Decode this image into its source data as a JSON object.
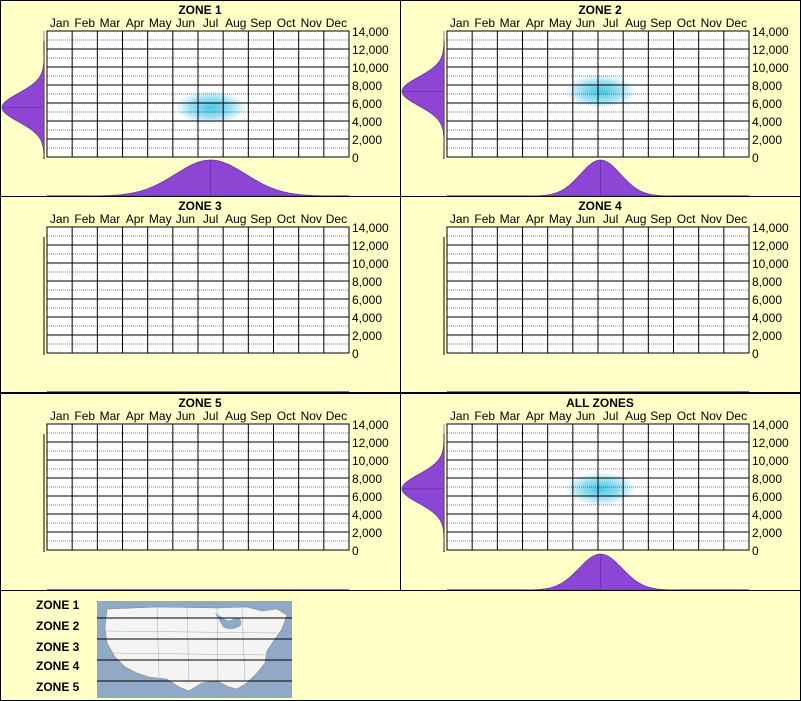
{
  "chart_data": [
    {
      "type": "heatmap",
      "title": "ZONE 1",
      "months": [
        "Jan",
        "Feb",
        "Mar",
        "Apr",
        "May",
        "Jun",
        "Jul",
        "Aug",
        "Sep",
        "Oct",
        "Nov",
        "Dec"
      ],
      "y_ticks": [
        "14,000",
        "12,000",
        "10,000",
        "8,000",
        "6,000",
        "4,000",
        "2,000",
        "0"
      ],
      "ylim": [
        0,
        14000
      ],
      "hotspot": {
        "month": 7.0,
        "elevation": 5500
      },
      "month_distribution": {
        "peak_month": 7.0,
        "spread": 1.4
      },
      "elevation_distribution": {
        "peak": 5500,
        "spread": 1600
      }
    },
    {
      "type": "heatmap",
      "title": "ZONE 2",
      "months": [
        "Jan",
        "Feb",
        "Mar",
        "Apr",
        "May",
        "Jun",
        "Jul",
        "Aug",
        "Sep",
        "Oct",
        "Nov",
        "Dec"
      ],
      "y_ticks": [
        "14,000",
        "12,000",
        "10,000",
        "8,000",
        "6,000",
        "4,000",
        "2,000",
        "0"
      ],
      "ylim": [
        0,
        14000
      ],
      "hotspot": {
        "month": 6.6,
        "elevation": 7300
      },
      "month_distribution": {
        "peak_month": 6.6,
        "spread": 0.8
      },
      "elevation_distribution": {
        "peak": 7300,
        "spread": 1600
      }
    },
    {
      "type": "heatmap",
      "title": "ZONE 3",
      "months": [
        "Jan",
        "Feb",
        "Mar",
        "Apr",
        "May",
        "Jun",
        "Jul",
        "Aug",
        "Sep",
        "Oct",
        "Nov",
        "Dec"
      ],
      "y_ticks": [
        "14,000",
        "12,000",
        "10,000",
        "8,000",
        "6,000",
        "4,000",
        "2,000",
        "0"
      ],
      "ylim": [
        0,
        14000
      ]
    },
    {
      "type": "heatmap",
      "title": "ZONE 4",
      "months": [
        "Jan",
        "Feb",
        "Mar",
        "Apr",
        "May",
        "Jun",
        "Jul",
        "Aug",
        "Sep",
        "Oct",
        "Nov",
        "Dec"
      ],
      "y_ticks": [
        "14,000",
        "12,000",
        "10,000",
        "8,000",
        "6,000",
        "4,000",
        "2,000",
        "0"
      ],
      "ylim": [
        0,
        14000
      ]
    },
    {
      "type": "heatmap",
      "title": "ZONE 5",
      "months": [
        "Jan",
        "Feb",
        "Mar",
        "Apr",
        "May",
        "Jun",
        "Jul",
        "Aug",
        "Sep",
        "Oct",
        "Nov",
        "Dec"
      ],
      "y_ticks": [
        "14,000",
        "12,000",
        "10,000",
        "8,000",
        "6,000",
        "4,000",
        "2,000",
        "0"
      ],
      "ylim": [
        0,
        14000
      ]
    },
    {
      "type": "heatmap",
      "title": "ALL ZONES",
      "months": [
        "Jan",
        "Feb",
        "Mar",
        "Apr",
        "May",
        "Jun",
        "Jul",
        "Aug",
        "Sep",
        "Oct",
        "Nov",
        "Dec"
      ],
      "y_ticks": [
        "14,000",
        "12,000",
        "10,000",
        "8,000",
        "6,000",
        "4,000",
        "2,000",
        "0"
      ],
      "ylim": [
        0,
        14000
      ],
      "hotspot": {
        "month": 6.6,
        "elevation": 6800
      },
      "month_distribution": {
        "peak_month": 6.6,
        "spread": 0.85
      },
      "elevation_distribution": {
        "peak": 6800,
        "spread": 1600
      }
    }
  ],
  "legend": {
    "zones": [
      "ZONE 1",
      "ZONE 2",
      "ZONE 3",
      "ZONE 4",
      "ZONE 5"
    ]
  },
  "colors": {
    "background": "#ffffc8",
    "distribution": "#8d45d3",
    "hotspot": "#49c6e8"
  }
}
